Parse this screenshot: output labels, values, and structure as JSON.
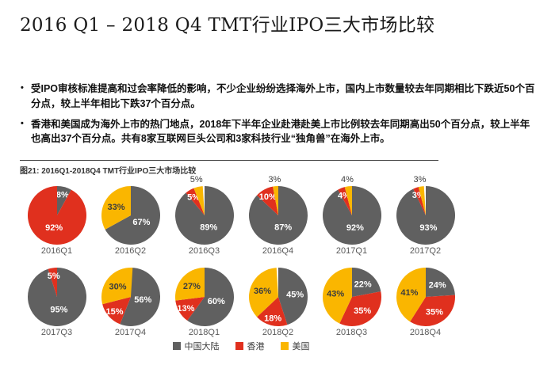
{
  "page": {
    "title": "2016 Q1 – 2018 Q4 TMT行业IPO三大市场比较",
    "bullets": [
      "受IPO审核标准提高和过会率降低的影响，不少企业纷纷选择海外上市，国内上市数量较去年同期相比下跌近50个百分点，较上半年相比下跌37个百分点。",
      "香港和美国成为海外上市的热门地点，2018年下半年企业赴港赴美上市比例较去年同期高出50个百分点，较上半年也高出37个百分点。共有8家互联网巨头公司和3家科技行业“独角兽”在海外上市。"
    ],
    "figure_caption": "图21: 2016Q1-2018Q4 TMT行业IPO三大市场比较"
  },
  "colors": {
    "mainland_gray": "#606060",
    "hongkong_red": "#e0301e",
    "us_yellow": "#fab600",
    "label_light": "#ffffff",
    "label_dark": "#3d3d3d"
  },
  "legend": [
    {
      "label": "中国大陆",
      "color": "#606060"
    },
    {
      "label": "香港",
      "color": "#e0301e"
    },
    {
      "label": "美国",
      "color": "#fab600"
    }
  ],
  "chart_data": {
    "type": "pie",
    "title": "图21: 2016Q1-2018Q4 TMT行业IPO三大市场比较",
    "legend_position": "bottom",
    "slice_order": [
      "中国大陆",
      "香港",
      "美国"
    ],
    "colors": {
      "中国大陆": "#606060",
      "香港": "#e0301e",
      "美国": "#fab600"
    },
    "unit": "%",
    "pies": [
      {
        "label": "2016Q1",
        "values": {
          "中国大陆": 8,
          "香港": 92,
          "美国": 0
        }
      },
      {
        "label": "2016Q2",
        "values": {
          "中国大陆": 67,
          "香港": 0,
          "美国": 33
        }
      },
      {
        "label": "2016Q3",
        "values": {
          "中国大陆": 89,
          "香港": 5,
          "美国": 5
        }
      },
      {
        "label": "2016Q4",
        "values": {
          "中国大陆": 87,
          "香港": 10,
          "美国": 3
        }
      },
      {
        "label": "2017Q1",
        "values": {
          "中国大陆": 92,
          "香港": 4,
          "美国": 4
        }
      },
      {
        "label": "2017Q2",
        "values": {
          "中国大陆": 93,
          "香港": 3,
          "美国": 3
        }
      },
      {
        "label": "2017Q3",
        "values": {
          "中国大陆": 95,
          "香港": 5,
          "美国": 0
        }
      },
      {
        "label": "2017Q4",
        "values": {
          "中国大陆": 56,
          "香港": 15,
          "美国": 30
        }
      },
      {
        "label": "2018Q1",
        "values": {
          "中国大陆": 60,
          "香港": 13,
          "美国": 27
        }
      },
      {
        "label": "2018Q2",
        "values": {
          "中国大陆": 45,
          "香港": 18,
          "美国": 36
        }
      },
      {
        "label": "2018Q3",
        "values": {
          "中国大陆": 22,
          "香港": 35,
          "美国": 43
        }
      },
      {
        "label": "2018Q4",
        "values": {
          "中国大陆": 24,
          "香港": 35,
          "美国": 41
        }
      }
    ]
  }
}
